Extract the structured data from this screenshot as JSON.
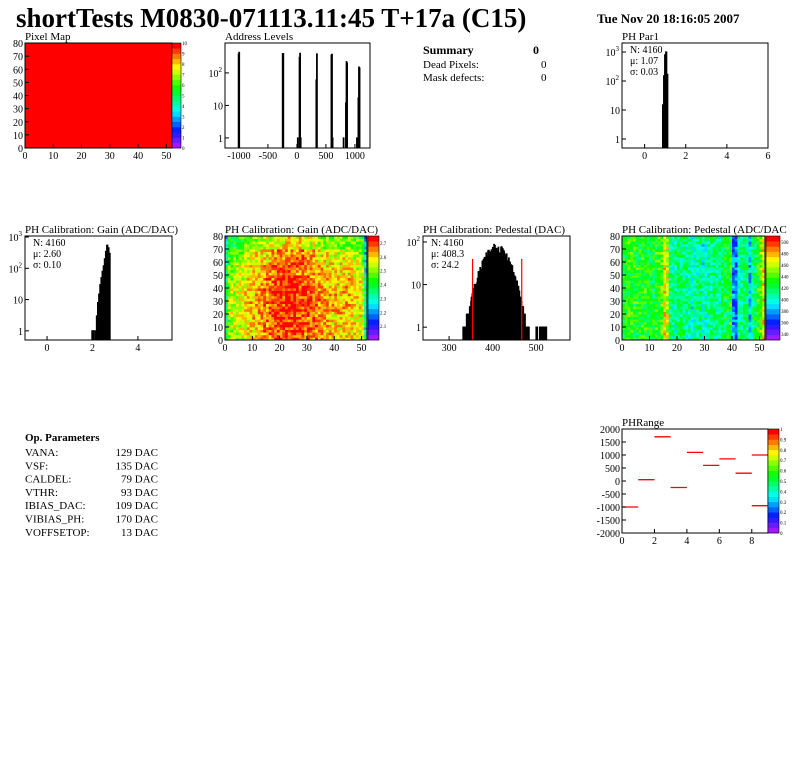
{
  "header": {
    "title": "shortTests M0830-071113.11:45 T+17a (C15)",
    "date": "Tue Nov 20 18:16:05 2007"
  },
  "summary": {
    "title": "Summary",
    "total": "0",
    "rows": [
      {
        "label": "Dead Pixels:",
        "value": "0"
      },
      {
        "label": "Mask defects:",
        "value": "0"
      }
    ]
  },
  "op_parameters": {
    "title": "Op. Parameters",
    "rows": [
      {
        "label": "VANA:",
        "value": "129 DAC"
      },
      {
        "label": "VSF:",
        "value": "135 DAC"
      },
      {
        "label": "CALDEL:",
        "value": "79 DAC"
      },
      {
        "label": "VTHR:",
        "value": "93 DAC"
      },
      {
        "label": "IBIAS_DAC:",
        "value": "109 DAC"
      },
      {
        "label": "VIBIAS_PH:",
        "value": "170 DAC"
      },
      {
        "label": "VOFFSETOP:",
        "value": "13 DAC"
      }
    ]
  },
  "colors": {
    "hist_line": "#000000",
    "fit": "#ff0000",
    "phrange_marks": "#ff0000"
  },
  "chart_data": [
    {
      "id": "pixel-map",
      "type": "heatmap",
      "title": "Pixel Map",
      "xlim": [
        0,
        52
      ],
      "ylim": [
        0,
        80
      ],
      "zlim": [
        0,
        10
      ],
      "xticks": [
        0,
        10,
        20,
        30,
        40,
        50
      ],
      "yticks": [
        0,
        10,
        20,
        30,
        40,
        50,
        60,
        70,
        80
      ],
      "zticks": [
        0,
        1,
        2,
        3,
        4,
        5,
        6,
        7,
        8,
        9,
        10
      ],
      "uniform_value": 10
    },
    {
      "id": "address-levels",
      "type": "bar",
      "title": "Address Levels",
      "xlim": [
        -1240,
        1260
      ],
      "ylim": [
        0.49,
        830
      ],
      "log_y": true,
      "bin_width": 10,
      "xticks": [
        -1000,
        -500,
        0,
        500,
        1000
      ],
      "yticks": [
        1,
        10,
        100
      ],
      "bins": [
        [
          -1005,
          380
        ],
        [
          -995,
          430
        ],
        [
          -245,
          390
        ],
        [
          -235,
          390
        ],
        [
          15,
          1
        ],
        [
          45,
          300
        ],
        [
          55,
          400
        ],
        [
          65,
          1
        ],
        [
          335,
          60
        ],
        [
          345,
          380
        ],
        [
          595,
          350
        ],
        [
          605,
          370
        ],
        [
          615,
          1
        ],
        [
          805,
          1
        ],
        [
          845,
          12
        ],
        [
          855,
          220
        ],
        [
          865,
          200
        ],
        [
          1035,
          1
        ],
        [
          1060,
          17
        ],
        [
          1070,
          150
        ],
        [
          1080,
          140
        ]
      ]
    },
    {
      "id": "ph-par1",
      "type": "bar",
      "title": "PH Par1",
      "xlim": [
        -1.1,
        6
      ],
      "ylim": [
        0.49,
        2040
      ],
      "log_y": true,
      "bin_width": 0.05,
      "xticks": [
        0,
        2,
        4,
        6
      ],
      "yticks": [
        1,
        10,
        100,
        1000
      ],
      "stats": [
        "N: 4160",
        "μ: 1.07",
        "σ: 0.03"
      ],
      "bins": [
        [
          0.9,
          15
        ],
        [
          0.95,
          150
        ],
        [
          1.0,
          800
        ],
        [
          1.05,
          1000
        ],
        [
          1.1,
          170
        ]
      ]
    },
    {
      "id": "gain-hist",
      "type": "bar",
      "title": "PH Calibration: Gain (ADC/DAC)",
      "xlim": [
        -0.97,
        5.5
      ],
      "ylim": [
        0.51,
        1080
      ],
      "log_y": true,
      "bin_width": 0.05,
      "xticks": [
        0,
        2,
        4
      ],
      "yticks": [
        1,
        10,
        100,
        1000
      ],
      "stats": [
        "N: 4160",
        "μ: 2.60",
        "σ: 0.10"
      ],
      "bins": [
        [
          2.0,
          1
        ],
        [
          2.05,
          1
        ],
        [
          2.15,
          1
        ],
        [
          2.2,
          3
        ],
        [
          2.25,
          8
        ],
        [
          2.3,
          15
        ],
        [
          2.35,
          30
        ],
        [
          2.4,
          50
        ],
        [
          2.45,
          80
        ],
        [
          2.5,
          120
        ],
        [
          2.55,
          200
        ],
        [
          2.6,
          350
        ],
        [
          2.65,
          550
        ],
        [
          2.7,
          450
        ],
        [
          2.75,
          300
        ]
      ]
    },
    {
      "id": "gain-map",
      "type": "heatmap",
      "title": "PH Calibration: Gain (ADC/DAC)",
      "xlim": [
        0,
        52
      ],
      "ylim": [
        0,
        80
      ],
      "zlim": [
        2.0,
        2.75
      ],
      "xticks": [
        0,
        10,
        20,
        30,
        40,
        50
      ],
      "yticks": [
        0,
        10,
        20,
        30,
        40,
        50,
        60,
        70,
        80
      ],
      "zticks": [
        2.1,
        2.2,
        2.3,
        2.4,
        2.5,
        2.6,
        2.7
      ],
      "column_means": [
        2.38,
        2.5,
        2.52,
        2.53,
        2.54,
        2.55,
        2.56,
        2.57,
        2.58,
        2.59,
        2.6,
        2.61,
        2.62,
        2.63,
        2.64,
        2.65,
        2.66,
        2.67,
        2.68,
        2.69,
        2.7,
        2.7,
        2.71,
        2.71,
        2.71,
        2.7,
        2.7,
        2.69,
        2.69,
        2.68,
        2.67,
        2.66,
        2.66,
        2.65,
        2.64,
        2.63,
        2.62,
        2.62,
        2.61,
        2.6,
        2.6,
        2.59,
        2.6,
        2.61,
        2.6,
        2.62,
        2.59,
        2.58,
        2.57,
        2.56,
        2.55,
        2.3
      ],
      "row_offsets": [
        0,
        0,
        0.01,
        0.01,
        0,
        -0.02,
        -0.05,
        -0.12
      ]
    },
    {
      "id": "pedestal-hist",
      "type": "bar",
      "title": "PH Calibration: Pedestal (DAC)",
      "xlim": [
        240,
        578
      ],
      "ylim": [
        0.5,
        138
      ],
      "log_y": true,
      "bin_width": 1,
      "xticks": [
        300,
        400,
        500
      ],
      "yticks": [
        1,
        10,
        100
      ],
      "stats": [
        "N: 4160",
        "μ: 408.3",
        "σ: 24.2"
      ],
      "entries": 4160,
      "mean": 408.3,
      "sigma": 24.2,
      "fit_range": [
        354,
        467
      ]
    },
    {
      "id": "pedestal-map",
      "type": "heatmap",
      "title": "PH Calibration: Pedestal (ADC/DAC",
      "xlim": [
        0,
        52
      ],
      "ylim": [
        0,
        80
      ],
      "zlim": [
        330,
        510
      ],
      "xticks": [
        0,
        10,
        20,
        30,
        40,
        50
      ],
      "yticks": [
        0,
        10,
        20,
        30,
        40,
        50,
        60,
        70,
        80
      ],
      "zticks": [
        340,
        360,
        380,
        400,
        420,
        440,
        460,
        480,
        500
      ],
      "column_means": [
        425,
        430,
        435,
        432,
        430,
        428,
        430,
        432,
        430,
        428,
        425,
        428,
        430,
        432,
        440,
        470,
        460,
        415,
        410,
        412,
        420,
        418,
        415,
        410,
        408,
        400,
        405,
        412,
        415,
        400,
        408,
        410,
        412,
        415,
        412,
        410,
        418,
        420,
        425,
        430,
        375,
        372,
        405,
        410,
        415,
        420,
        385,
        410,
        420,
        430,
        440,
        470
      ]
    },
    {
      "id": "phrange",
      "type": "scatter",
      "title": "PHRange",
      "xlim": [
        0,
        9
      ],
      "ylim": [
        -2000,
        2000
      ],
      "zlim": [
        0,
        1
      ],
      "xticks": [
        0,
        2,
        4,
        6,
        8
      ],
      "yticks": [
        -2000,
        -1500,
        -1000,
        -500,
        0,
        500,
        1000,
        1500,
        2000
      ],
      "zticks": [
        0,
        0.1,
        0.2,
        0.3,
        0.4,
        0.5,
        0.6,
        0.7,
        0.8,
        0.9,
        1
      ],
      "segments": [
        [
          0,
          -1000
        ],
        [
          1,
          50
        ],
        [
          2,
          1700
        ],
        [
          3,
          -250
        ],
        [
          4,
          1100
        ],
        [
          5,
          600
        ],
        [
          6,
          850
        ],
        [
          7,
          300
        ],
        [
          8,
          1000
        ],
        [
          8,
          -950
        ]
      ]
    }
  ]
}
